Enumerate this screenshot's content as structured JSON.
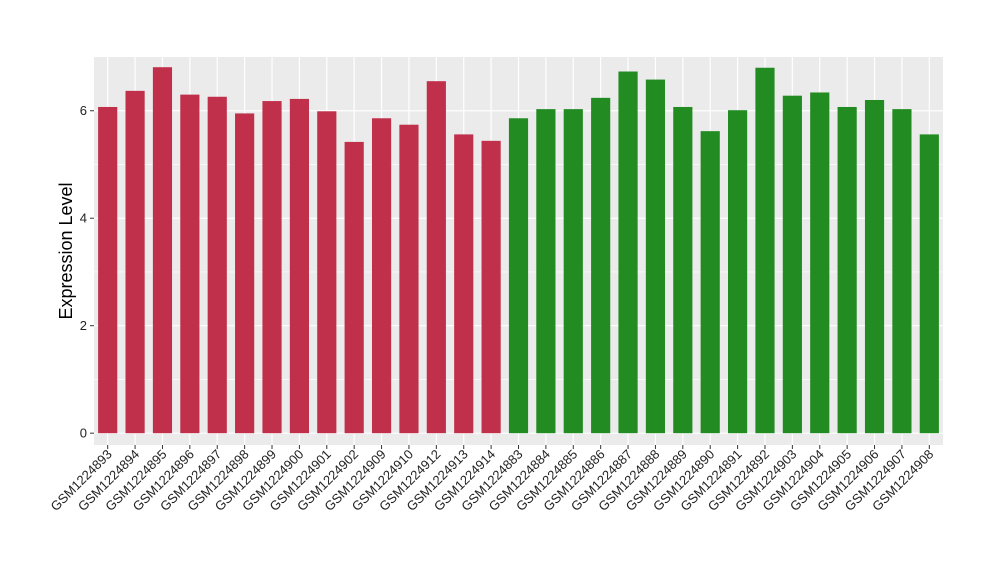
{
  "chart_data": {
    "type": "bar",
    "title": "",
    "xlabel": "",
    "ylabel": "Expression Level",
    "ylim": [
      -0.22,
      7.0
    ],
    "yticks": [
      0,
      2,
      4,
      6
    ],
    "grid": true,
    "legend": "none",
    "colors": {
      "group_a": "#C0304A",
      "group_b": "#228B22",
      "panel": "#EBEBEB",
      "grid": "#FFFFFF"
    },
    "categories": [
      "GSM1224893",
      "GSM1224894",
      "GSM1224895",
      "GSM1224896",
      "GSM1224897",
      "GSM1224898",
      "GSM1224899",
      "GSM1224900",
      "GSM1224901",
      "GSM1224902",
      "GSM1224909",
      "GSM1224910",
      "GSM1224912",
      "GSM1224913",
      "GSM1224914",
      "GSM1224883",
      "GSM1224884",
      "GSM1224885",
      "GSM1224886",
      "GSM1224887",
      "GSM1224888",
      "GSM1224889",
      "GSM1224890",
      "GSM1224891",
      "GSM1224892",
      "GSM1224903",
      "GSM1224904",
      "GSM1224905",
      "GSM1224906",
      "GSM1224907",
      "GSM1224908"
    ],
    "values": [
      6.07,
      6.37,
      6.81,
      6.3,
      6.26,
      5.95,
      6.18,
      6.22,
      5.99,
      5.42,
      5.86,
      5.74,
      6.55,
      5.56,
      5.44,
      5.86,
      6.03,
      6.03,
      6.24,
      6.73,
      6.58,
      6.07,
      5.62,
      6.01,
      6.8,
      6.28,
      6.34,
      6.07,
      6.2,
      6.03,
      5.56
    ],
    "bar_groups": [
      "a",
      "a",
      "a",
      "a",
      "a",
      "a",
      "a",
      "a",
      "a",
      "a",
      "a",
      "a",
      "a",
      "a",
      "a",
      "b",
      "b",
      "b",
      "b",
      "b",
      "b",
      "b",
      "b",
      "b",
      "b",
      "b",
      "b",
      "b",
      "b",
      "b",
      "b"
    ]
  }
}
